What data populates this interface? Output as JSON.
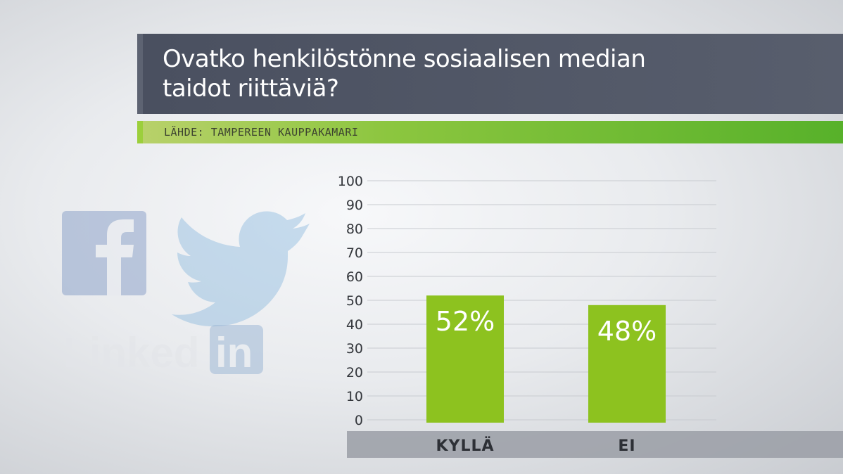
{
  "header": {
    "title": "Ovatko henkilöstönne sosiaalisen median taidot riittäviä?",
    "source": "LÄHDE: TAMPEREEN KAUPPAKAMARI"
  },
  "logos": {
    "facebook_icon": "facebook-icon",
    "twitter_icon": "twitter-bird-icon",
    "linkedin_text": "Linked",
    "linkedin_badge": "in"
  },
  "colors": {
    "bar": "#8dc21f",
    "title_bg": "#4f5564",
    "source_bar": "#6cbf2f",
    "axis_band": "#9a9ea6",
    "grid": "#c8cbd0"
  },
  "chart_data": {
    "type": "bar",
    "categories": [
      "KYLLÄ",
      "EI"
    ],
    "values": [
      52,
      48
    ],
    "data_labels": [
      "52%",
      "48%"
    ],
    "yticks": [
      "0",
      "10",
      "20",
      "30",
      "40",
      "50",
      "60",
      "70",
      "80",
      "90",
      "100"
    ],
    "ylim": [
      0,
      100
    ],
    "grid": true,
    "legend": "none"
  }
}
